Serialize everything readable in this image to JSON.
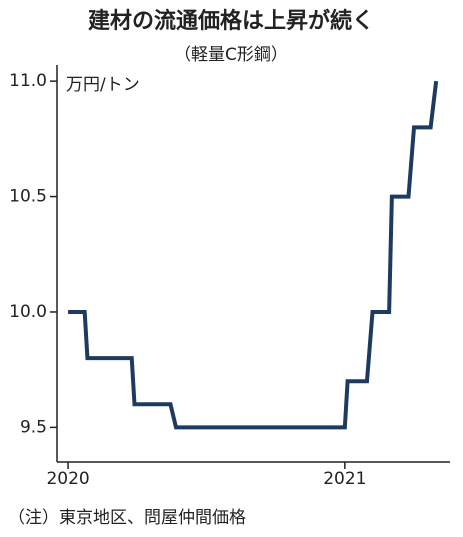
{
  "chart_data": {
    "type": "line",
    "title": "建材の流通価格は上昇が続く",
    "subtitle": "（軽量C形鋼）",
    "y_label": "万円/トン",
    "note": "（注）東京地区、問屋仲間価格",
    "x": [
      2020.0,
      2020.06,
      2020.07,
      2020.23,
      2020.24,
      2020.37,
      2020.39,
      2021.0,
      2021.01,
      2021.08,
      2021.1,
      2021.16,
      2021.17,
      2021.23,
      2021.25,
      2021.31,
      2021.33
    ],
    "series": [
      {
        "name": "軽量C形鋼",
        "color": "#1f3a5f",
        "values": [
          10.0,
          10.0,
          9.8,
          9.8,
          9.6,
          9.6,
          9.5,
          9.5,
          9.7,
          9.7,
          10.0,
          10.0,
          10.5,
          10.5,
          10.8,
          10.8,
          11.0
        ]
      }
    ],
    "xlim": [
      2019.96,
      2021.38
    ],
    "xticks": [
      2020,
      2021
    ],
    "ylim": [
      9.35,
      11.07
    ],
    "yticks": [
      {
        "value": 9.5,
        "label": "9.5"
      },
      {
        "value": 10,
        "label": "10.0"
      },
      10.5,
      {
        "value": 11,
        "label": "11.0"
      }
    ]
  }
}
